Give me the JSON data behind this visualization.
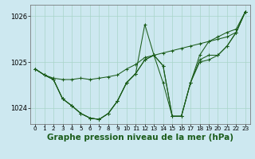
{
  "background_color": "#cde8f0",
  "grid_color": "#a8d5c8",
  "line_color": "#1a5c1a",
  "xlabel": "Graphe pression niveau de la mer (hPa)",
  "xlabel_fontsize": 7.5,
  "xlim": [
    -0.5,
    23.5
  ],
  "ylim": [
    1023.65,
    1026.25
  ],
  "yticks": [
    1024,
    1025,
    1026
  ],
  "ytick_labels": [
    "1024",
    "1025",
    "1026"
  ],
  "xticks": [
    0,
    1,
    2,
    3,
    4,
    5,
    6,
    7,
    8,
    9,
    10,
    11,
    12,
    13,
    14,
    15,
    16,
    17,
    18,
    19,
    20,
    21,
    22,
    23
  ],
  "series": [
    [
      1024.85,
      1024.72,
      1024.65,
      1024.62,
      1024.62,
      1024.65,
      1024.62,
      1024.65,
      1024.68,
      1024.72,
      1024.85,
      1024.95,
      1025.1,
      1025.15,
      1025.2,
      1025.25,
      1025.3,
      1025.35,
      1025.4,
      1025.45,
      1025.5,
      1025.55,
      1025.65,
      1026.1
    ],
    [
      1024.85,
      1024.72,
      1024.62,
      1024.2,
      1024.05,
      1023.88,
      1023.78,
      1023.75,
      1023.88,
      1024.15,
      1024.55,
      1024.75,
      1025.82,
      1025.15,
      1024.92,
      1023.82,
      1023.82,
      1024.55,
      1025.15,
      1025.45,
      1025.55,
      1025.65,
      1025.72,
      1026.1
    ],
    [
      1024.85,
      1024.72,
      1024.62,
      1024.2,
      1024.05,
      1023.88,
      1023.78,
      1023.75,
      1023.88,
      1024.15,
      1024.55,
      1024.75,
      1025.05,
      1025.15,
      1024.92,
      1023.82,
      1023.82,
      1024.55,
      1025.05,
      1025.15,
      1025.15,
      1025.35,
      1025.65,
      1026.1
    ],
    [
      1024.85,
      1024.72,
      1024.62,
      1024.2,
      1024.05,
      1023.88,
      1023.78,
      1023.75,
      1023.88,
      1024.15,
      1024.55,
      1024.75,
      1025.05,
      1025.15,
      1024.55,
      1023.82,
      1023.82,
      1024.55,
      1025.0,
      1025.05,
      1025.15,
      1025.35,
      1025.65,
      1026.1
    ]
  ]
}
